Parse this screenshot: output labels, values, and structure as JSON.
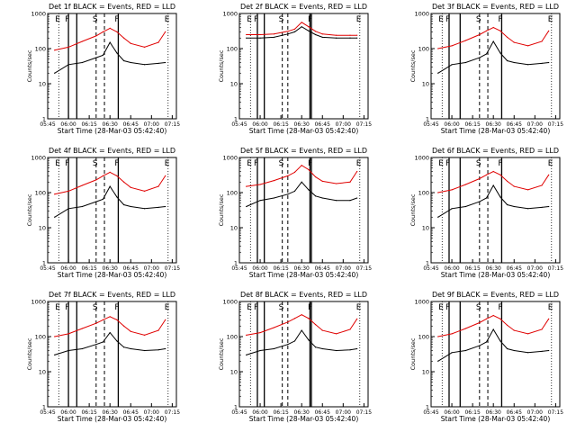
{
  "figure": {
    "ylabel": "Counts/sec",
    "xlabel": "Start Time (28-Mar-03 05:42:40)",
    "x_ticks": [
      "05:45",
      "06:00",
      "06:15",
      "06:30",
      "06:45",
      "07:00",
      "07:15"
    ],
    "y_ticks": [
      "1",
      "10",
      "100",
      "1000"
    ],
    "colors": {
      "events": "#000000",
      "lld": "#e00000"
    }
  },
  "chart_data": [
    {
      "type": "line",
      "title": "Det 1f BLACK = Events, RED = LLD",
      "xlabel": "Start Time (28-Mar-03 05:42:40)",
      "ylabel": "Counts/sec",
      "ylim": [
        1,
        1000
      ],
      "yscale": "log",
      "x": [
        "05:50",
        "06:00",
        "06:10",
        "06:20",
        "06:25",
        "06:30",
        "06:35",
        "06:40",
        "06:45",
        "06:55",
        "07:05",
        "07:10"
      ],
      "series": [
        {
          "name": "Events",
          "values": [
            20,
            35,
            40,
            55,
            65,
            150,
            75,
            45,
            40,
            35,
            38,
            40
          ]
        },
        {
          "name": "LLD",
          "values": [
            90,
            110,
            160,
            230,
            300,
            380,
            300,
            200,
            140,
            110,
            150,
            300
          ]
        }
      ],
      "markers": {
        "solid": [
          "06:00",
          "06:06",
          "06:36"
        ],
        "dashed": [
          "06:20",
          "06:26"
        ],
        "dotted": [
          "05:53",
          "07:12"
        ],
        "letters": [
          "E",
          "F",
          "S",
          "F",
          "E"
        ]
      }
    },
    {
      "type": "line",
      "title": "Det 2f BLACK = Events, RED = LLD",
      "xlabel": "Start Time (28-Mar-03 05:42:40)",
      "ylabel": "Counts/sec",
      "ylim": [
        1,
        1000
      ],
      "yscale": "log",
      "x": [
        "05:50",
        "06:00",
        "06:10",
        "06:20",
        "06:25",
        "06:30",
        "06:35",
        "06:40",
        "06:45",
        "06:55",
        "07:05",
        "07:10"
      ],
      "series": [
        {
          "name": "Events",
          "values": [
            200,
            200,
            210,
            260,
            300,
            420,
            320,
            250,
            210,
            200,
            200,
            200
          ]
        },
        {
          "name": "LLD",
          "values": [
            250,
            250,
            260,
            310,
            360,
            560,
            420,
            310,
            260,
            240,
            240,
            240
          ]
        }
      ],
      "markers": {
        "solid": [
          "05:58",
          "06:03",
          "06:36",
          "06:37"
        ],
        "dashed": [
          "06:16",
          "06:20"
        ],
        "dotted": [
          "05:53",
          "07:12"
        ],
        "letters": [
          "E",
          "F",
          "S",
          "F",
          "E"
        ]
      }
    },
    {
      "type": "line",
      "title": "Det 3f BLACK = Events, RED = LLD",
      "xlabel": "Start Time (28-Mar-03 05:42:40)",
      "ylabel": "Counts/sec",
      "ylim": [
        1,
        1000
      ],
      "yscale": "log",
      "x": [
        "05:50",
        "06:00",
        "06:10",
        "06:20",
        "06:25",
        "06:30",
        "06:35",
        "06:40",
        "06:45",
        "06:55",
        "07:05",
        "07:10"
      ],
      "series": [
        {
          "name": "Events",
          "values": [
            20,
            35,
            40,
            55,
            70,
            160,
            75,
            45,
            40,
            35,
            38,
            40
          ]
        },
        {
          "name": "LLD",
          "values": [
            100,
            120,
            170,
            250,
            320,
            400,
            320,
            210,
            150,
            120,
            160,
            320
          ]
        }
      ],
      "markers": {
        "solid": [
          "05:58",
          "06:06",
          "06:36"
        ],
        "dashed": [
          "06:20",
          "06:26"
        ],
        "dotted": [
          "05:53",
          "07:12"
        ],
        "letters": [
          "E",
          "F",
          "S",
          "F",
          "E"
        ]
      }
    },
    {
      "type": "line",
      "title": "Det 4f BLACK = Events, RED = LLD",
      "xlabel": "Start Time (28-Mar-03 05:42:40)",
      "ylabel": "Counts/sec",
      "ylim": [
        1,
        1000
      ],
      "yscale": "log",
      "x": [
        "05:50",
        "06:00",
        "06:10",
        "06:20",
        "06:25",
        "06:30",
        "06:35",
        "06:40",
        "06:45",
        "06:55",
        "07:05",
        "07:10"
      ],
      "series": [
        {
          "name": "Events",
          "values": [
            20,
            35,
            40,
            55,
            65,
            150,
            75,
            45,
            40,
            35,
            38,
            40
          ]
        },
        {
          "name": "LLD",
          "values": [
            90,
            110,
            160,
            230,
            300,
            380,
            300,
            200,
            140,
            110,
            150,
            300
          ]
        }
      ],
      "markers": {
        "solid": [
          "06:00",
          "06:06",
          "06:36"
        ],
        "dashed": [
          "06:20",
          "06:26"
        ],
        "dotted": [
          "05:53",
          "07:12"
        ],
        "letters": [
          "E",
          "F",
          "S",
          "F",
          "E"
        ]
      }
    },
    {
      "type": "line",
      "title": "Det 5f BLACK = Events, RED = LLD",
      "xlabel": "Start Time (28-Mar-03 05:42:40)",
      "ylabel": "Counts/sec",
      "ylim": [
        1,
        1000
      ],
      "yscale": "log",
      "x": [
        "05:50",
        "06:00",
        "06:10",
        "06:20",
        "06:25",
        "06:30",
        "06:35",
        "06:40",
        "06:45",
        "06:55",
        "07:05",
        "07:10"
      ],
      "series": [
        {
          "name": "Events",
          "values": [
            40,
            60,
            70,
            90,
            110,
            200,
            120,
            80,
            70,
            60,
            60,
            70
          ]
        },
        {
          "name": "LLD",
          "values": [
            150,
            170,
            220,
            300,
            380,
            600,
            450,
            280,
            210,
            180,
            200,
            400
          ]
        }
      ],
      "markers": {
        "solid": [
          "05:58",
          "06:03",
          "06:36",
          "06:37"
        ],
        "dashed": [
          "06:16",
          "06:20"
        ],
        "dotted": [
          "05:53",
          "07:12"
        ],
        "letters": [
          "E",
          "F",
          "S",
          "F",
          "E"
        ]
      }
    },
    {
      "type": "line",
      "title": "Det 6f BLACK = Events, RED = LLD",
      "xlabel": "Start Time (28-Mar-03 05:42:40)",
      "ylabel": "Counts/sec",
      "ylim": [
        1,
        1000
      ],
      "yscale": "log",
      "x": [
        "05:50",
        "06:00",
        "06:10",
        "06:20",
        "06:25",
        "06:30",
        "06:35",
        "06:40",
        "06:45",
        "06:55",
        "07:05",
        "07:10"
      ],
      "series": [
        {
          "name": "Events",
          "values": [
            20,
            35,
            40,
            55,
            70,
            160,
            75,
            45,
            40,
            35,
            38,
            40
          ]
        },
        {
          "name": "LLD",
          "values": [
            100,
            120,
            170,
            250,
            320,
            400,
            320,
            210,
            150,
            120,
            160,
            320
          ]
        }
      ],
      "markers": {
        "solid": [
          "05:58",
          "06:06",
          "06:36"
        ],
        "dashed": [
          "06:20",
          "06:26"
        ],
        "dotted": [
          "05:53",
          "07:12"
        ],
        "letters": [
          "E",
          "F",
          "S",
          "F",
          "E"
        ]
      }
    },
    {
      "type": "line",
      "title": "Det 7f BLACK = Events, RED = LLD",
      "xlabel": "Start Time (28-Mar-03 05:42:40)",
      "ylabel": "Counts/sec",
      "ylim": [
        1,
        1000
      ],
      "yscale": "log",
      "x": [
        "05:50",
        "06:00",
        "06:10",
        "06:20",
        "06:25",
        "06:30",
        "06:35",
        "06:40",
        "06:45",
        "06:55",
        "07:05",
        "07:10"
      ],
      "series": [
        {
          "name": "Events",
          "values": [
            30,
            40,
            45,
            60,
            70,
            130,
            75,
            50,
            45,
            40,
            42,
            45
          ]
        },
        {
          "name": "LLD",
          "values": [
            100,
            120,
            170,
            240,
            300,
            370,
            300,
            200,
            140,
            110,
            150,
            300
          ]
        }
      ],
      "markers": {
        "solid": [
          "06:00",
          "06:06",
          "06:36"
        ],
        "dashed": [
          "06:20",
          "06:26"
        ],
        "dotted": [
          "05:53",
          "07:12"
        ],
        "letters": [
          "E",
          "F",
          "S",
          "F",
          "E"
        ]
      }
    },
    {
      "type": "line",
      "title": "Det 8f BLACK = Events, RED = LLD",
      "xlabel": "Start Time (28-Mar-03 05:42:40)",
      "ylabel": "Counts/sec",
      "ylim": [
        1,
        1000
      ],
      "yscale": "log",
      "x": [
        "05:50",
        "06:00",
        "06:10",
        "06:20",
        "06:25",
        "06:30",
        "06:35",
        "06:40",
        "06:45",
        "06:55",
        "07:05",
        "07:10"
      ],
      "series": [
        {
          "name": "Events",
          "values": [
            30,
            40,
            45,
            60,
            75,
            150,
            80,
            50,
            45,
            40,
            42,
            45
          ]
        },
        {
          "name": "LLD",
          "values": [
            110,
            130,
            180,
            260,
            330,
            420,
            330,
            220,
            150,
            120,
            160,
            320
          ]
        }
      ],
      "markers": {
        "solid": [
          "05:58",
          "06:03",
          "06:36",
          "06:37"
        ],
        "dashed": [
          "06:16",
          "06:20"
        ],
        "dotted": [
          "05:53",
          "07:12"
        ],
        "letters": [
          "E",
          "F",
          "S",
          "F",
          "E"
        ]
      }
    },
    {
      "type": "line",
      "title": "Det 9f BLACK = Events, RED = LLD",
      "xlabel": "Start Time (28-Mar-03 05:42:40)",
      "ylabel": "Counts/sec",
      "ylim": [
        1,
        1000
      ],
      "yscale": "log",
      "x": [
        "05:50",
        "06:00",
        "06:10",
        "06:20",
        "06:25",
        "06:30",
        "06:35",
        "06:40",
        "06:45",
        "06:55",
        "07:05",
        "07:10"
      ],
      "series": [
        {
          "name": "Events",
          "values": [
            20,
            35,
            40,
            55,
            70,
            160,
            75,
            45,
            40,
            35,
            38,
            40
          ]
        },
        {
          "name": "LLD",
          "values": [
            100,
            120,
            170,
            250,
            320,
            400,
            320,
            210,
            150,
            120,
            160,
            320
          ]
        }
      ],
      "markers": {
        "solid": [
          "05:58",
          "06:06",
          "06:36"
        ],
        "dashed": [
          "06:20",
          "06:26"
        ],
        "dotted": [
          "05:53",
          "07:12"
        ],
        "letters": [
          "E",
          "F",
          "S",
          "F",
          "E"
        ]
      }
    }
  ]
}
